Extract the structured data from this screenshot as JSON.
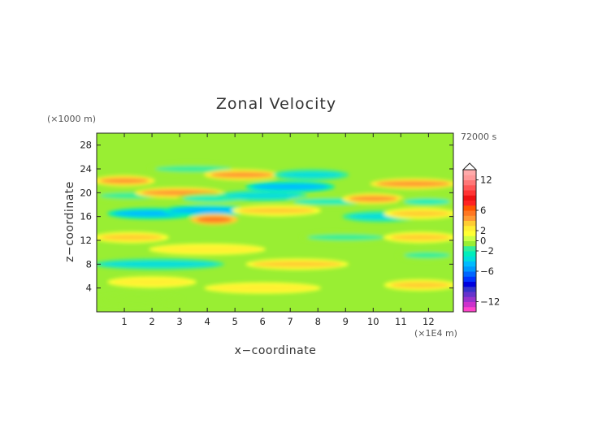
{
  "chart_data": {
    "type": "heatmap",
    "title": "Zonal Velocity",
    "xlabel": "x−coordinate",
    "ylabel": "z−coordinate",
    "x_unit": "(×1E4 m)",
    "y_unit": "(×1000 m)",
    "time_label": "72000 s",
    "xlim": [
      0,
      12.9
    ],
    "ylim": [
      0,
      30
    ],
    "x_ticks": [
      "1",
      "2",
      "3",
      "4",
      "5",
      "6",
      "7",
      "8",
      "9",
      "10",
      "11",
      "12"
    ],
    "x_tick_values": [
      1,
      2,
      3,
      4,
      5,
      6,
      7,
      8,
      9,
      10,
      11,
      12
    ],
    "y_ticks": [
      "4",
      "8",
      "12",
      "16",
      "20",
      "24",
      "28"
    ],
    "y_tick_values": [
      4,
      8,
      12,
      16,
      20,
      24,
      28
    ],
    "colorbar": {
      "levels": [
        -14,
        -13,
        -12,
        -11,
        -10,
        -9,
        -8,
        -7,
        -6,
        -5,
        -4,
        -3,
        -2,
        -1,
        0,
        1,
        2,
        3,
        4,
        5,
        6,
        7,
        8,
        9,
        10,
        11,
        12,
        13,
        14
      ],
      "colors": [
        "#ff44cc",
        "#cc33cc",
        "#9933cc",
        "#6633cc",
        "#3333cc",
        "#0000dd",
        "#0033ff",
        "#0066ff",
        "#0099ff",
        "#00bbff",
        "#00dddd",
        "#00eebb",
        "#33ee99",
        "#99ee33",
        "#ccff44",
        "#ffff33",
        "#ffee33",
        "#ffcc33",
        "#ff9933",
        "#ff7722",
        "#ff5500",
        "#ff2222",
        "#ee1111",
        "#ff3333",
        "#ff5555",
        "#ff7777",
        "#ff9999",
        "#ffaaaa"
      ],
      "tick_labels": [
        "12",
        "6",
        "2",
        "0",
        "−2",
        "−6",
        "−12"
      ],
      "tick_values": [
        12,
        6,
        2,
        0,
        -2,
        -6,
        -12
      ]
    },
    "bands": [
      {
        "x0": 0.0,
        "x1": 4.5,
        "z": 8.0,
        "value": -4
      },
      {
        "x0": 0.0,
        "x1": 2.5,
        "z": 12.5,
        "value": 3
      },
      {
        "x0": 0.0,
        "x1": 2.0,
        "z": 22.0,
        "value": 4
      },
      {
        "x0": 0.0,
        "x1": 2.5,
        "z": 19.5,
        "value": -2
      },
      {
        "x0": 0.5,
        "x1": 3.5,
        "z": 16.5,
        "value": -5
      },
      {
        "x0": 0.5,
        "x1": 3.5,
        "z": 5.0,
        "value": 2
      },
      {
        "x0": 1.5,
        "x1": 4.5,
        "z": 20.0,
        "value": 4
      },
      {
        "x0": 2.0,
        "x1": 5.0,
        "z": 24.0,
        "value": -2
      },
      {
        "x0": 2.5,
        "x1": 5.5,
        "z": 17.0,
        "value": -5
      },
      {
        "x0": 3.5,
        "x1": 5.0,
        "z": 15.5,
        "value": 5
      },
      {
        "x0": 3.0,
        "x1": 5.5,
        "z": 19.0,
        "value": -3
      },
      {
        "x0": 4.0,
        "x1": 6.5,
        "z": 23.0,
        "value": 4
      },
      {
        "x0": 4.5,
        "x1": 7.5,
        "z": 19.5,
        "value": -4
      },
      {
        "x0": 5.0,
        "x1": 8.0,
        "z": 17.0,
        "value": 3
      },
      {
        "x0": 5.5,
        "x1": 8.5,
        "z": 21.0,
        "value": -5
      },
      {
        "x0": 5.5,
        "x1": 9.0,
        "z": 8.0,
        "value": 3
      },
      {
        "x0": 6.5,
        "x1": 9.0,
        "z": 23.0,
        "value": -4
      },
      {
        "x0": 7.0,
        "x1": 10.0,
        "z": 18.5,
        "value": -3
      },
      {
        "x0": 7.5,
        "x1": 10.5,
        "z": 12.5,
        "value": -2
      },
      {
        "x0": 9.0,
        "x1": 11.5,
        "z": 16.0,
        "value": -4
      },
      {
        "x0": 9.0,
        "x1": 11.0,
        "z": 19.0,
        "value": 4
      },
      {
        "x0": 10.0,
        "x1": 12.9,
        "z": 21.5,
        "value": 4
      },
      {
        "x0": 10.5,
        "x1": 12.9,
        "z": 16.5,
        "value": 3
      },
      {
        "x0": 10.5,
        "x1": 12.9,
        "z": 12.5,
        "value": 3
      },
      {
        "x0": 10.5,
        "x1": 12.9,
        "z": 4.5,
        "value": 3
      },
      {
        "x0": 11.0,
        "x1": 12.9,
        "z": 18.5,
        "value": -3
      },
      {
        "x0": 11.0,
        "x1": 12.9,
        "z": 9.5,
        "value": -2
      },
      {
        "x0": 0.0,
        "x1": 3.0,
        "z": 2.0,
        "value": -1
      },
      {
        "x0": 4.0,
        "x1": 8.0,
        "z": 4.0,
        "value": 2
      },
      {
        "x0": 2.0,
        "x1": 6.0,
        "z": 10.5,
        "value": 2
      }
    ]
  }
}
